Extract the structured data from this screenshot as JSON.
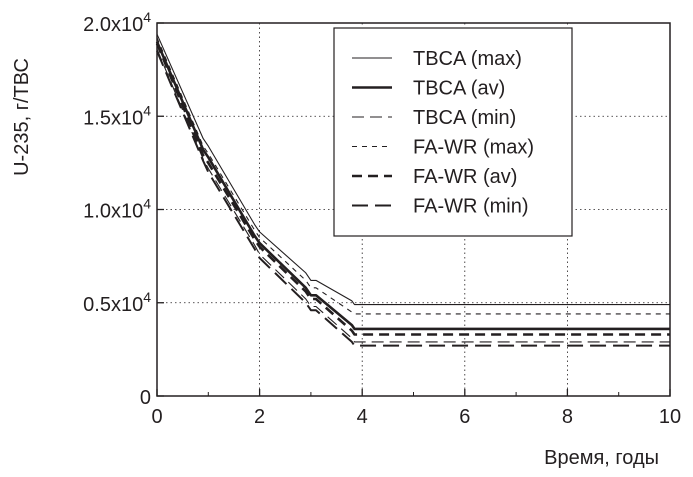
{
  "chart_data": {
    "type": "line",
    "xlabel": "Время, годы",
    "ylabel": "U-235, г/ТВС",
    "xlim": [
      0,
      10
    ],
    "ylim": [
      0,
      20000
    ],
    "x_ticks": [
      "0",
      "2",
      "4",
      "6",
      "8",
      "10"
    ],
    "y_ticks": [
      {
        "base": "0",
        "exp": ""
      },
      {
        "base": "0.5x10",
        "exp": "4"
      },
      {
        "base": "1.0x10",
        "exp": "4"
      },
      {
        "base": "1.5x10",
        "exp": "4"
      },
      {
        "base": "2.0x10",
        "exp": "4"
      }
    ],
    "grid": "dotted",
    "legend_position": "top-right",
    "series": [
      {
        "name": "TBCA (max)",
        "color": "#231f20",
        "style": "thin-solid",
        "x": [
          0,
          0.9,
          1.0,
          1.9,
          2.0,
          2.9,
          3.0,
          3.1,
          3.8,
          3.85,
          10
        ],
        "y": [
          19400,
          13800,
          13400,
          9200,
          8800,
          6600,
          6200,
          6200,
          5100,
          4900,
          4900
        ]
      },
      {
        "name": "TBCA (av)",
        "color": "#231f20",
        "style": "thick-solid",
        "x": [
          0,
          0.9,
          1.0,
          1.9,
          2.0,
          2.9,
          3.0,
          3.1,
          3.8,
          3.85,
          10
        ],
        "y": [
          19000,
          13200,
          12800,
          8600,
          8200,
          5800,
          5400,
          5400,
          3800,
          3600,
          3600
        ]
      },
      {
        "name": "TBCA (min)",
        "color": "#231f20",
        "style": "thin-long-dash",
        "x": [
          0,
          0.9,
          1.0,
          1.9,
          2.0,
          2.9,
          3.0,
          3.1,
          3.8,
          3.85,
          10
        ],
        "y": [
          18600,
          12700,
          12200,
          8100,
          7600,
          5200,
          4800,
          4800,
          3100,
          2900,
          2900
        ]
      },
      {
        "name": "FA-WR (max)",
        "color": "#231f20",
        "style": "thin-short-dash",
        "x": [
          0,
          0.9,
          1.0,
          1.9,
          2.0,
          2.9,
          3.0,
          3.1,
          3.8,
          3.85,
          10
        ],
        "y": [
          19200,
          13400,
          13000,
          8900,
          8500,
          6200,
          5800,
          5800,
          4500,
          4400,
          4400
        ]
      },
      {
        "name": "FA-WR (av)",
        "color": "#231f20",
        "style": "thick-dash",
        "x": [
          0,
          0.9,
          1.0,
          1.9,
          2.0,
          2.9,
          3.0,
          3.1,
          3.8,
          3.85,
          10
        ],
        "y": [
          18900,
          12900,
          12500,
          8400,
          8000,
          5600,
          5200,
          5200,
          3500,
          3300,
          3300
        ]
      },
      {
        "name": "FA-WR (min)",
        "color": "#231f20",
        "style": "thick-long-dash",
        "x": [
          0,
          0.9,
          1.0,
          1.9,
          2.0,
          2.9,
          3.0,
          3.1,
          3.8,
          3.85,
          10
        ],
        "y": [
          18500,
          12600,
          12000,
          7900,
          7400,
          5000,
          4600,
          4600,
          2900,
          2700,
          2700
        ]
      }
    ]
  }
}
